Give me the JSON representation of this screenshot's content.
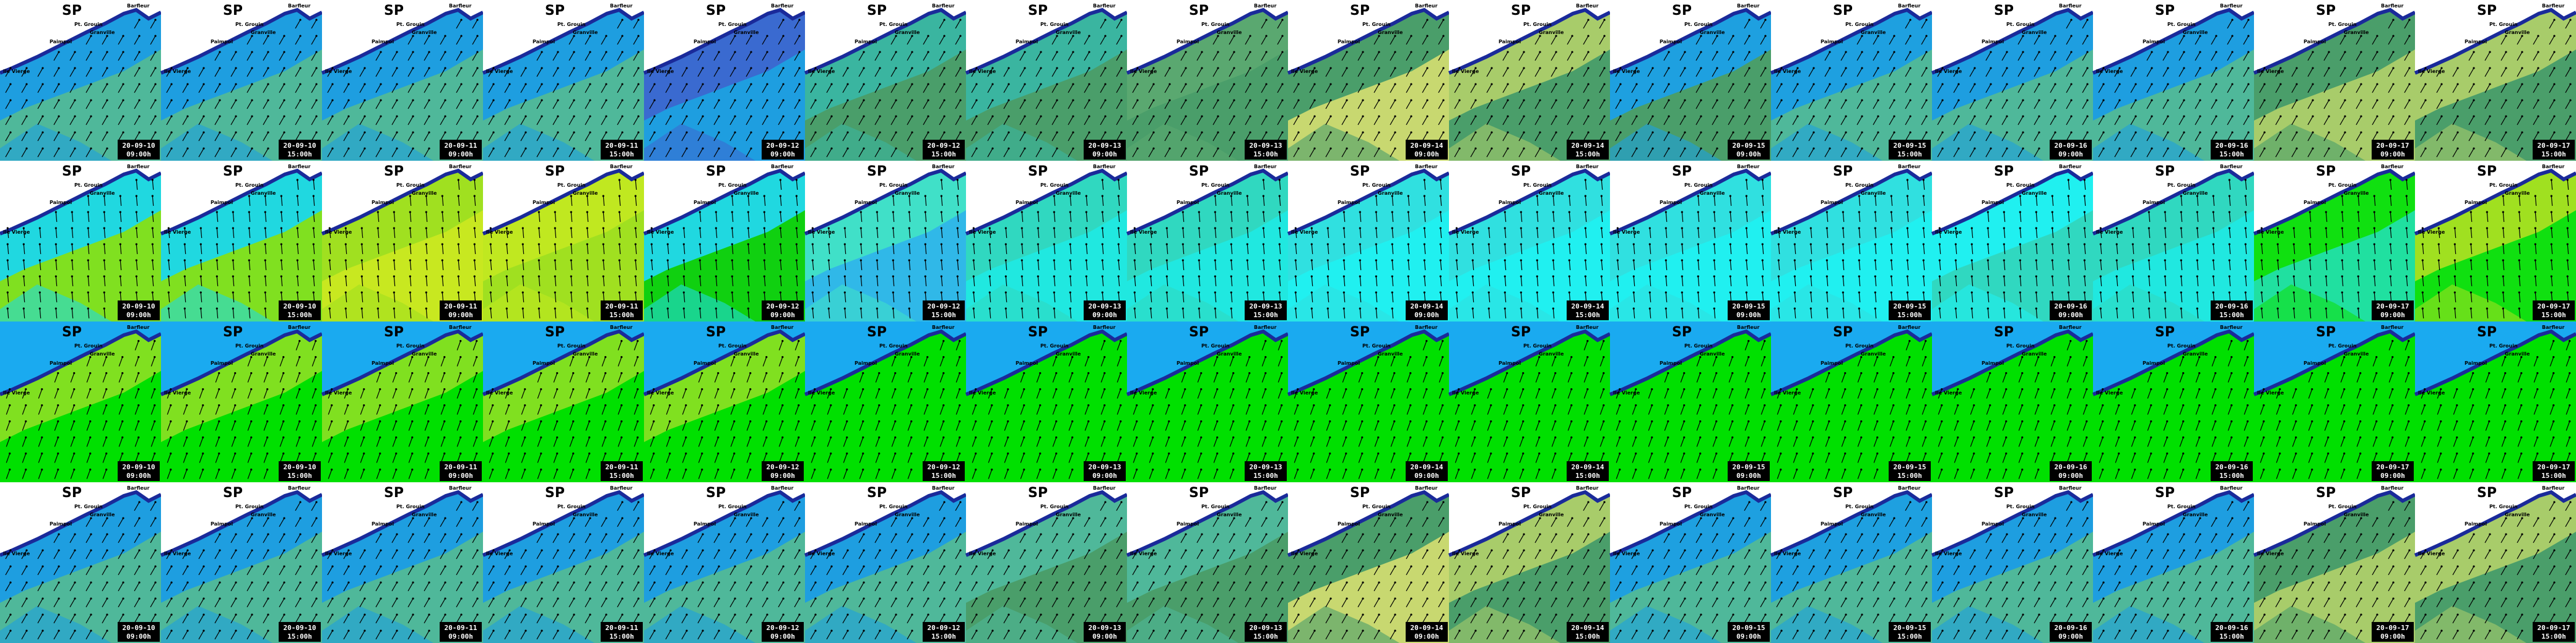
{
  "panels": {
    "title": "SP",
    "places": [
      "Barfleur",
      "Pt. Grouin",
      "Granville",
      "Paimpol",
      "Ile Vierge"
    ],
    "frames": [
      {
        "date": "20-09-10",
        "time": "09:00h"
      },
      {
        "date": "20-09-10",
        "time": "15:00h"
      },
      {
        "date": "20-09-11",
        "time": "09:00h"
      },
      {
        "date": "20-09-11",
        "time": "15:00h"
      },
      {
        "date": "20-09-12",
        "time": "09:00h"
      },
      {
        "date": "20-09-12",
        "time": "15:00h"
      },
      {
        "date": "20-09-13",
        "time": "09:00h"
      },
      {
        "date": "20-09-13",
        "time": "15:00h"
      },
      {
        "date": "20-09-14",
        "time": "09:00h"
      },
      {
        "date": "20-09-14",
        "time": "15:00h"
      },
      {
        "date": "20-09-15",
        "time": "09:00h"
      },
      {
        "date": "20-09-15",
        "time": "15:00h"
      },
      {
        "date": "20-09-16",
        "time": "09:00h"
      },
      {
        "date": "20-09-16",
        "time": "15:00h"
      },
      {
        "date": "20-09-17",
        "time": "09:00h"
      },
      {
        "date": "20-09-17",
        "time": "15:00h"
      }
    ]
  },
  "rows": [
    {
      "land": "#ffffff",
      "colors": [
        [
          "#4fb89a",
          "#1e9ee0"
        ],
        [
          "#4fb89a",
          "#1e9ee0"
        ],
        [
          "#4fb89a",
          "#1e9ee0"
        ],
        [
          "#4fb89a",
          "#1e9ee0"
        ],
        [
          "#1e9ee0",
          "#3a6ad0"
        ],
        [
          "#4a9e6a",
          "#3ab5a0"
        ],
        [
          "#4a9e6a",
          "#3ab5a0"
        ],
        [
          "#4a9e6a",
          "#5aa870"
        ],
        [
          "#c8d870",
          "#4a9e6a"
        ],
        [
          "#4a9e6a",
          "#a8cc6a"
        ],
        [
          "#4a9e6a",
          "#1ea0e0"
        ],
        [
          "#4fb89a",
          "#1ea0e0"
        ],
        [
          "#4fb89a",
          "#1e9ee0"
        ],
        [
          "#4fb89a",
          "#1e9ee0"
        ],
        [
          "#a8cc6a",
          "#4a9e6a"
        ],
        [
          "#4a9e6a",
          "#a8cc6a"
        ]
      ]
    },
    {
      "land": "#ffffff",
      "colors": [
        [
          "#80e020",
          "#20d8e0"
        ],
        [
          "#80e020",
          "#20d8e0"
        ],
        [
          "#c8e820",
          "#a0e020"
        ],
        [
          "#a0e020",
          "#c0e820"
        ],
        [
          "#10d010",
          "#20d8e0"
        ],
        [
          "#30b8e8",
          "#40e0c8"
        ],
        [
          "#20e8e0",
          "#30d8c0"
        ],
        [
          "#20e8e0",
          "#30d8c0"
        ],
        [
          "#20f0f0",
          "#30e0e0"
        ],
        [
          "#20f0f0",
          "#30e0e0"
        ],
        [
          "#20f0f0",
          "#30e0e0"
        ],
        [
          "#20f0f0",
          "#30e0e0"
        ],
        [
          "#30d8c0",
          "#20f0f0"
        ],
        [
          "#20e8e0",
          "#30d8c0"
        ],
        [
          "#20e0a0",
          "#10e010"
        ],
        [
          "#10e010",
          "#a0e020"
        ]
      ]
    },
    {
      "land": "#1aaaf0",
      "colors": [
        [
          "#00e000",
          "#80e020"
        ],
        [
          "#00e000",
          "#80e020"
        ],
        [
          "#00e000",
          "#80e020"
        ],
        [
          "#00e000",
          "#80e020"
        ],
        [
          "#00e000",
          "#80e020"
        ],
        [
          "#00e000",
          "#00e000"
        ],
        [
          "#00e000",
          "#00e000"
        ],
        [
          "#00e000",
          "#00e000"
        ],
        [
          "#00e000",
          "#00e000"
        ],
        [
          "#00e000",
          "#00e000"
        ],
        [
          "#00e000",
          "#00e000"
        ],
        [
          "#00e000",
          "#00e000"
        ],
        [
          "#00e000",
          "#00e000"
        ],
        [
          "#00e000",
          "#00e000"
        ],
        [
          "#00e000",
          "#00e000"
        ],
        [
          "#00e000",
          "#00e000"
        ]
      ]
    },
    {
      "land": "#ffffff",
      "colors": [
        [
          "#4fb89a",
          "#1e9ee0"
        ],
        [
          "#4fb89a",
          "#1e9ee0"
        ],
        [
          "#4fb89a",
          "#1e9ee0"
        ],
        [
          "#4fb89a",
          "#1e9ee0"
        ],
        [
          "#4fb89a",
          "#1e9ee0"
        ],
        [
          "#4fb89a",
          "#1e9ee0"
        ],
        [
          "#4a9e6a",
          "#4fb89a"
        ],
        [
          "#4a9e6a",
          "#4fb89a"
        ],
        [
          "#c8d870",
          "#4a9e6a"
        ],
        [
          "#4a9e6a",
          "#a8cc6a"
        ],
        [
          "#4fb89a",
          "#1ea0e0"
        ],
        [
          "#4fb89a",
          "#1ea0e0"
        ],
        [
          "#4fb89a",
          "#1e9ee0"
        ],
        [
          "#4fb89a",
          "#1e9ee0"
        ],
        [
          "#a8cc6a",
          "#4a9e6a"
        ],
        [
          "#4a9e6a",
          "#a8cc6a"
        ]
      ]
    }
  ]
}
